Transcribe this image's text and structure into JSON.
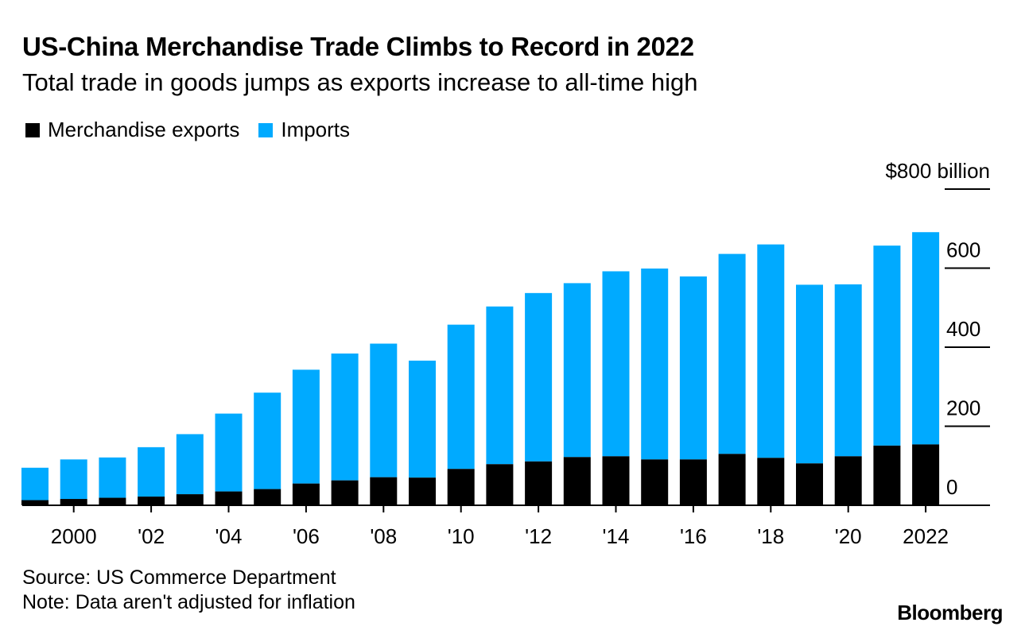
{
  "title": "US-China Merchandise Trade Climbs to Record in 2022",
  "subtitle": "Total trade in goods jumps as exports increase to all-time high",
  "legend": {
    "exports": "Merchandise exports",
    "imports": "Imports"
  },
  "colors": {
    "exports": "#000000",
    "imports": "#00aaff"
  },
  "source": "Source: US Commerce Department",
  "note": "Note: Data aren't adjusted for inflation",
  "logo": "Bloomberg",
  "chart_data": {
    "type": "bar",
    "stacked": true,
    "categories": [
      "1999",
      "2000",
      "2001",
      "2002",
      "2003",
      "2004",
      "2005",
      "2006",
      "2007",
      "2008",
      "2009",
      "2010",
      "2011",
      "2012",
      "2013",
      "2014",
      "2015",
      "2016",
      "2017",
      "2018",
      "2019",
      "2020",
      "2021",
      "2022"
    ],
    "series": [
      {
        "name": "Merchandise exports",
        "values": [
          13,
          16,
          19,
          22,
          28,
          35,
          41,
          55,
          63,
          71,
          70,
          92,
          104,
          111,
          122,
          124,
          116,
          116,
          130,
          120,
          106,
          124,
          151,
          154
        ]
      },
      {
        "name": "Imports",
        "values": [
          82,
          100,
          102,
          125,
          152,
          197,
          244,
          288,
          321,
          338,
          296,
          365,
          399,
          426,
          440,
          468,
          483,
          463,
          506,
          540,
          452,
          435,
          506,
          537
        ]
      }
    ],
    "x_tick_labels": [
      "2000",
      "'02",
      "'04",
      "'06",
      "'08",
      "'10",
      "'12",
      "'14",
      "'16",
      "'18",
      "'20",
      "2022"
    ],
    "y_tick_labels": [
      "$800 billion",
      "600",
      "400",
      "200",
      "0"
    ],
    "ylim": [
      0,
      800
    ],
    "xlabel": "",
    "ylabel": "",
    "grid": false,
    "legend_position": "top-left"
  }
}
